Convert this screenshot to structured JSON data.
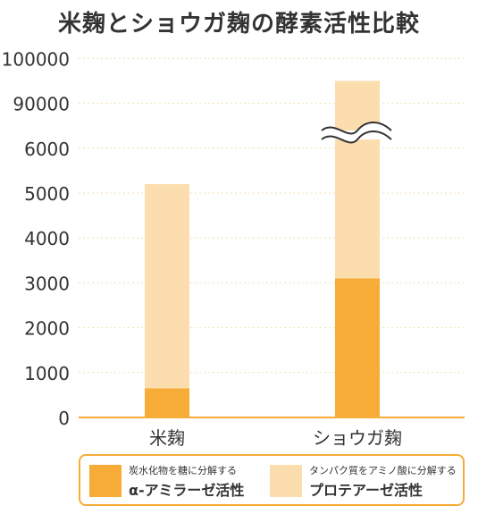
{
  "chart_data": {
    "type": "bar",
    "title": "米麹とショウガ麹の酵素活性比較",
    "categories": [
      "米麹",
      "ショウガ麹"
    ],
    "series": [
      {
        "name": "α-アミラーゼ活性",
        "description": "炭水化物を糖に分解する",
        "color": "#F6AC37",
        "values": [
          650,
          3100
        ]
      },
      {
        "name": "プロテアーゼ活性",
        "description": "タンパク質をアミノ酸に分解する",
        "color": "#FCDDAE",
        "values": [
          5200,
          95000
        ]
      }
    ],
    "y_ticks": [
      "0",
      "1000",
      "2000",
      "3000",
      "4000",
      "5000",
      "6000",
      "90000",
      "100000"
    ],
    "y_axis_break": "between 6000 and 90000",
    "stacked": true,
    "grid": true,
    "legend_position": "bottom"
  }
}
